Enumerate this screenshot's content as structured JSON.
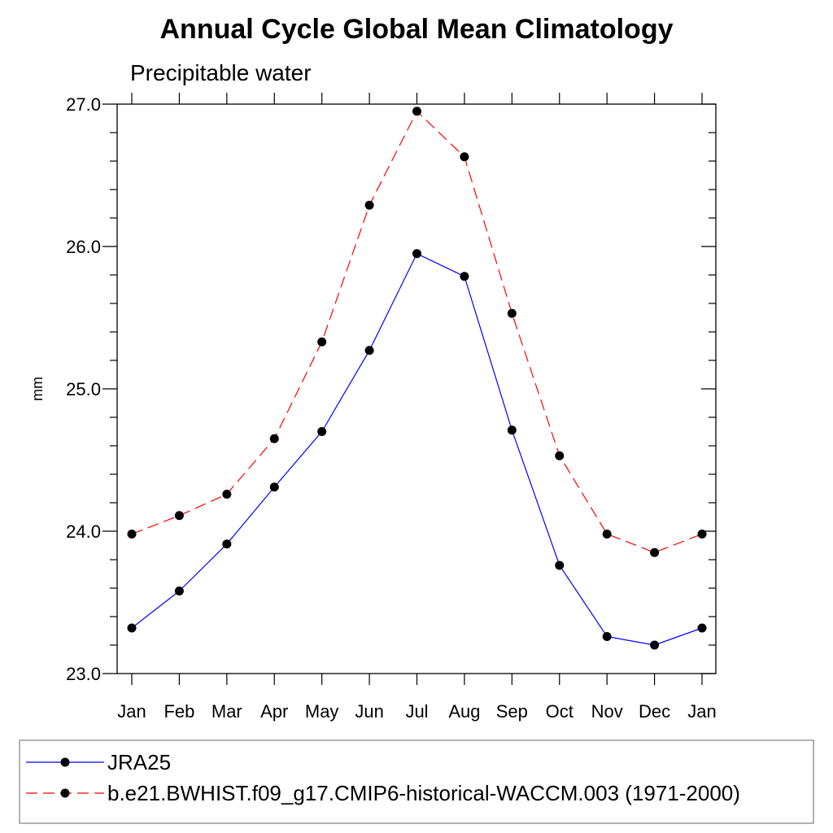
{
  "chart_data": {
    "type": "line",
    "title": "Annual Cycle Global Mean Climatology",
    "subtitle": "Precipitable water",
    "xlabel": "",
    "ylabel": "mm",
    "categories": [
      "Jan",
      "Feb",
      "Mar",
      "Apr",
      "May",
      "Jun",
      "Jul",
      "Aug",
      "Sep",
      "Oct",
      "Nov",
      "Dec",
      "Jan"
    ],
    "ylim": [
      23.0,
      27.0
    ],
    "yticks": [
      "23.0",
      "24.0",
      "25.0",
      "26.0",
      "27.0"
    ],
    "grid": false,
    "legend_position": "bottom",
    "series": [
      {
        "name": "JRA25",
        "color": "#0000ff",
        "dash": "solid",
        "marker": "filled-circle",
        "values": [
          23.32,
          23.58,
          23.91,
          24.31,
          24.7,
          25.27,
          25.95,
          25.79,
          24.71,
          23.76,
          23.26,
          23.2,
          23.32
        ]
      },
      {
        "name": "b.e21.BWHIST.f09_g17.CMIP6-historical-WACCM.003 (1971-2000)",
        "color": "#ff0000",
        "dash": "dashed",
        "marker": "filled-circle",
        "values": [
          23.98,
          24.11,
          24.26,
          24.65,
          25.33,
          26.29,
          26.95,
          26.63,
          25.53,
          24.53,
          23.98,
          23.85,
          23.98
        ]
      }
    ]
  }
}
